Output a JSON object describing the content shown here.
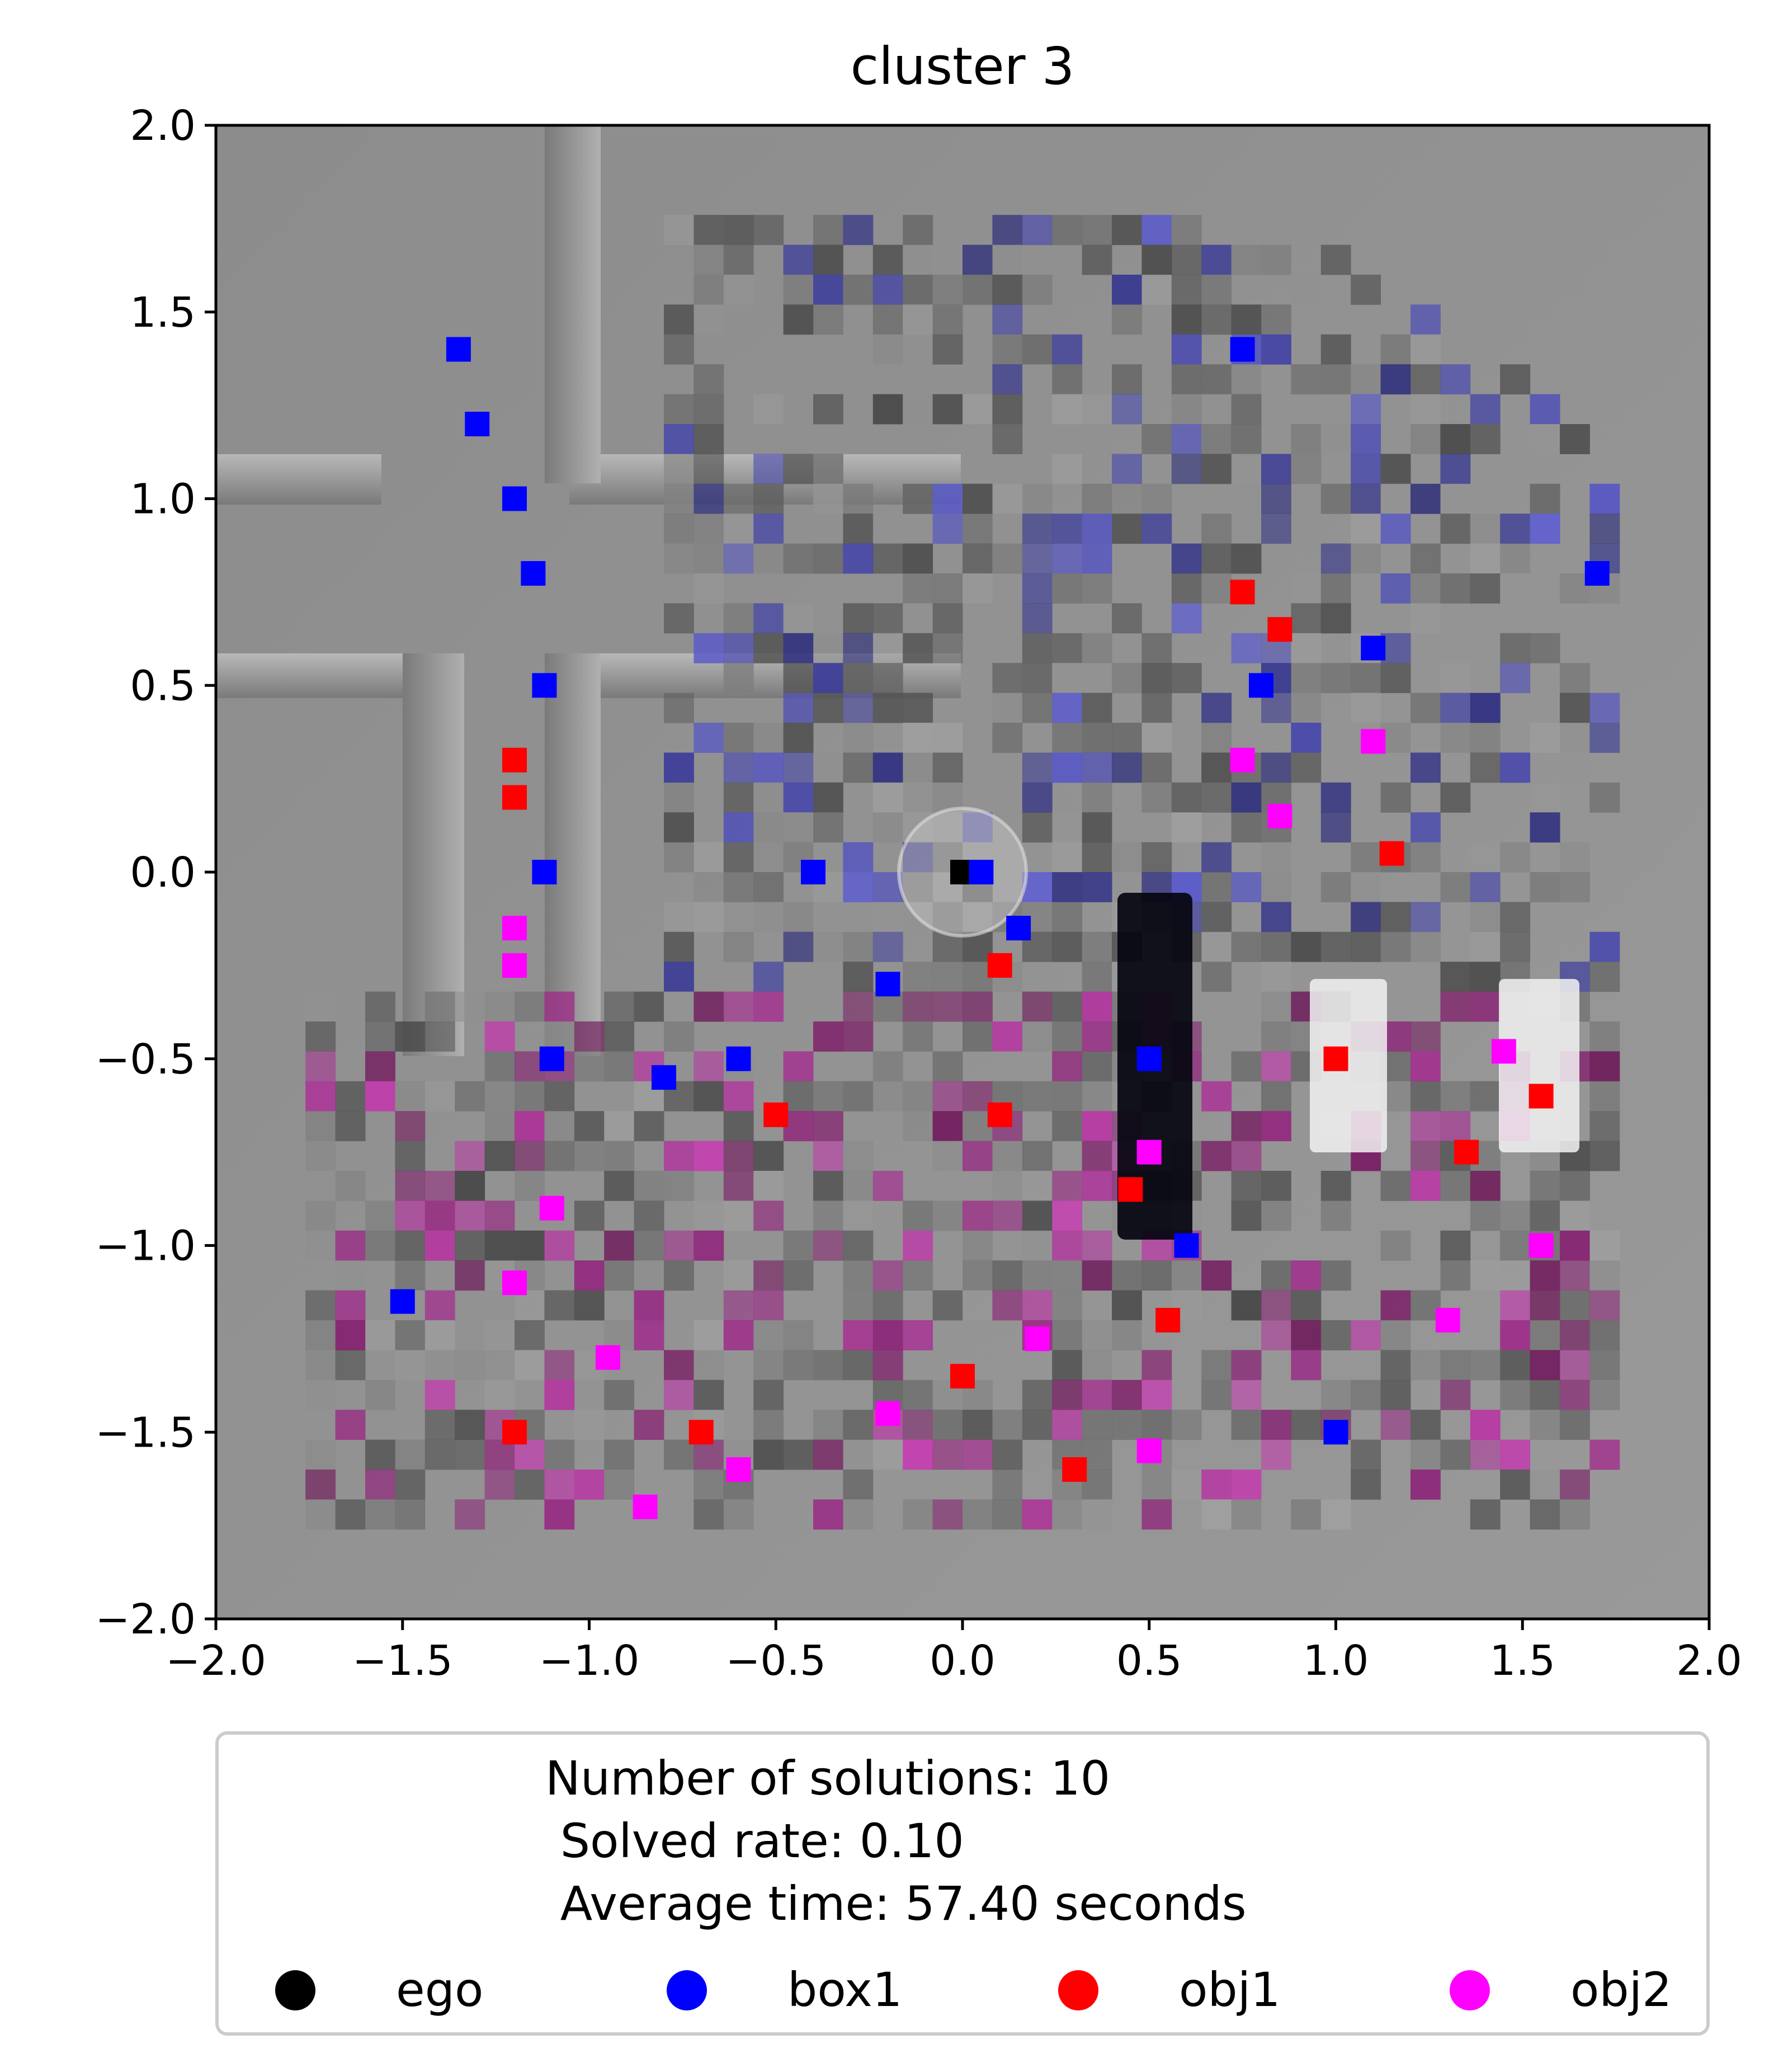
{
  "chart_data": {
    "type": "scatter",
    "title": "cluster 3",
    "xlabel": "",
    "ylabel": "",
    "xlim": [
      -2.0,
      2.0
    ],
    "ylim": [
      -2.0,
      2.0
    ],
    "x_ticks": [
      "−2.0",
      "−1.5",
      "−1.0",
      "−0.5",
      "0.0",
      "0.5",
      "1.0",
      "1.5",
      "2.0"
    ],
    "y_ticks": [
      "2.0",
      "1.5",
      "1.0",
      "0.5",
      "0.0",
      "−0.5",
      "−1.0",
      "−1.5",
      "−2.0"
    ],
    "grid": false,
    "background": "gray top-down scene rendering with pixelated occupancy heatmap",
    "legend": {
      "placement": "below plot",
      "text_lines": [
        "Number of solutions: 10",
        " Solved rate: 0.10",
        " Average time: 57.40 seconds"
      ],
      "entries": [
        {
          "label": "ego",
          "color": "#000000"
        },
        {
          "label": "box1",
          "color": "#0000ff"
        },
        {
          "label": "obj1",
          "color": "#ff0000"
        },
        {
          "label": "obj2",
          "color": "#ff00ff"
        }
      ]
    },
    "series": [
      {
        "name": "ego",
        "color": "#000000",
        "points": [
          [
            0.0,
            0.0
          ]
        ]
      },
      {
        "name": "box1",
        "color": "#0000ff",
        "points": [
          [
            -1.35,
            1.4
          ],
          [
            -1.3,
            1.2
          ],
          [
            -1.2,
            1.0
          ],
          [
            -1.15,
            0.8
          ],
          [
            -1.12,
            0.5
          ],
          [
            -1.12,
            0.0
          ],
          [
            -1.1,
            -0.5
          ],
          [
            -0.8,
            -0.55
          ],
          [
            -0.6,
            -0.5
          ],
          [
            -0.4,
            0.0
          ],
          [
            -0.2,
            -0.3
          ],
          [
            0.05,
            0.0
          ],
          [
            0.15,
            -0.15
          ],
          [
            0.5,
            -0.5
          ],
          [
            0.6,
            -1.0
          ],
          [
            0.75,
            1.4
          ],
          [
            0.8,
            0.5
          ],
          [
            1.1,
            0.6
          ],
          [
            1.7,
            0.8
          ],
          [
            -1.5,
            -1.15
          ],
          [
            1.0,
            -1.5
          ]
        ]
      },
      {
        "name": "obj1",
        "color": "#ff0000",
        "points": [
          [
            -1.2,
            0.3
          ],
          [
            -1.2,
            0.2
          ],
          [
            0.75,
            0.75
          ],
          [
            0.85,
            0.65
          ],
          [
            1.15,
            0.05
          ],
          [
            0.1,
            -0.25
          ],
          [
            1.0,
            -0.5
          ],
          [
            1.55,
            -0.6
          ],
          [
            1.35,
            -0.75
          ],
          [
            0.45,
            -0.85
          ],
          [
            -0.5,
            -0.65
          ],
          [
            0.1,
            -0.65
          ],
          [
            -0.7,
            -1.5
          ],
          [
            0.3,
            -1.6
          ],
          [
            0.55,
            -1.2
          ],
          [
            -1.2,
            -1.5
          ],
          [
            0.0,
            -1.35
          ]
        ]
      },
      {
        "name": "obj2",
        "color": "#ff00ff",
        "points": [
          [
            -1.2,
            -0.15
          ],
          [
            -1.2,
            -0.25
          ],
          [
            0.75,
            0.3
          ],
          [
            0.85,
            0.15
          ],
          [
            1.1,
            0.35
          ],
          [
            1.45,
            -0.48
          ],
          [
            0.5,
            -0.75
          ],
          [
            1.55,
            -1.0
          ],
          [
            -1.2,
            -1.1
          ],
          [
            -0.95,
            -1.3
          ],
          [
            1.3,
            -1.2
          ],
          [
            -0.6,
            -1.6
          ],
          [
            0.5,
            -1.55
          ],
          [
            -0.85,
            -1.7
          ],
          [
            -0.2,
            -1.45
          ],
          [
            -1.1,
            -0.9
          ],
          [
            0.2,
            -1.25
          ]
        ]
      }
    ]
  }
}
